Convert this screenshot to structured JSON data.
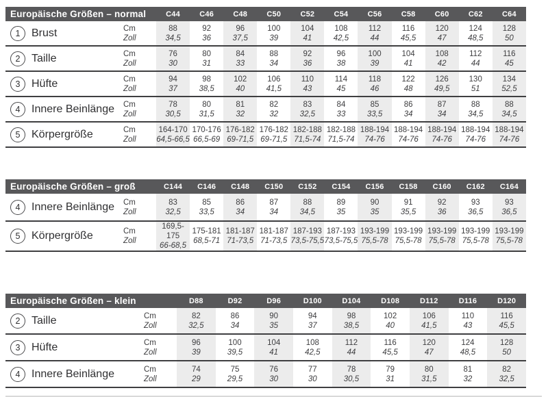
{
  "colors": {
    "header_bar": "#58585a",
    "header_text": "#ffffff",
    "stripe": "#ececec",
    "text": "#3e3e40",
    "rule": "#3e3e40",
    "bottom_divider": "#d9d9d9"
  },
  "units": {
    "cm_label": "Cm",
    "zoll_label": "Zoll"
  },
  "tables": [
    {
      "title": "Europäische Größen – normal",
      "columns": [
        "C44",
        "C46",
        "C48",
        "C50",
        "C52",
        "C54",
        "C56",
        "C58",
        "C60",
        "C62",
        "C64"
      ],
      "rows": [
        {
          "num": "1",
          "label": "Brust",
          "cm": [
            "88",
            "92",
            "96",
            "100",
            "104",
            "108",
            "112",
            "116",
            "120",
            "124",
            "128"
          ],
          "zoll": [
            "34,5",
            "36",
            "37,5",
            "39",
            "41",
            "42,5",
            "44",
            "45,5",
            "47",
            "48,5",
            "50"
          ]
        },
        {
          "num": "2",
          "label": "Taille",
          "cm": [
            "76",
            "80",
            "84",
            "88",
            "92",
            "96",
            "100",
            "104",
            "108",
            "112",
            "116"
          ],
          "zoll": [
            "30",
            "31",
            "33",
            "34",
            "36",
            "38",
            "39",
            "41",
            "42",
            "44",
            "45"
          ]
        },
        {
          "num": "3",
          "label": "Hüfte",
          "cm": [
            "94",
            "98",
            "102",
            "106",
            "110",
            "114",
            "118",
            "122",
            "126",
            "130",
            "134"
          ],
          "zoll": [
            "37",
            "38,5",
            "40",
            "41,5",
            "43",
            "45",
            "46",
            "48",
            "49,5",
            "51",
            "52,5"
          ]
        },
        {
          "num": "4",
          "label": "Innere Beinlänge",
          "cm": [
            "78",
            "80",
            "81",
            "82",
            "83",
            "84",
            "85",
            "86",
            "87",
            "88",
            "88"
          ],
          "zoll": [
            "30,5",
            "31,5",
            "32",
            "32",
            "32,5",
            "33",
            "33,5",
            "34",
            "34",
            "34,5",
            "34,5"
          ]
        },
        {
          "num": "5",
          "label": "Körpergröße",
          "cm": [
            "164-170",
            "170-176",
            "176-182",
            "176-182",
            "182-188",
            "182-188",
            "188-194",
            "188-194",
            "188-194",
            "188-194",
            "188-194"
          ],
          "zoll": [
            "64,5-66,5",
            "66,5-69",
            "69-71,5",
            "69-71,5",
            "71,5-74",
            "71,5-74",
            "74-76",
            "74-76",
            "74-76",
            "74-76",
            "74-76"
          ]
        }
      ]
    },
    {
      "title": "Europäische Größen – groß",
      "columns": [
        "C144",
        "C146",
        "C148",
        "C150",
        "C152",
        "C154",
        "C156",
        "C158",
        "C160",
        "C162",
        "C164"
      ],
      "rows": [
        {
          "num": "4",
          "label": "Innere Beinlänge",
          "cm": [
            "83",
            "85",
            "86",
            "87",
            "88",
            "89",
            "90",
            "91",
            "92",
            "93",
            "93"
          ],
          "zoll": [
            "32,5",
            "33,5",
            "34",
            "34",
            "34,5",
            "35",
            "35",
            "35,5",
            "36",
            "36,5",
            "36,5"
          ]
        },
        {
          "num": "5",
          "label": "Körpergröße",
          "cm": [
            "169,5-175",
            "175-181",
            "181-187",
            "181-187",
            "187-193",
            "187-193",
            "193-199",
            "193-199",
            "193-199",
            "193-199",
            "193-199"
          ],
          "zoll": [
            "66-68,5",
            "68,5-71",
            "71-73,5",
            "71-73,5",
            "73,5-75,5",
            "73,5-75,5",
            "75,5-78",
            "75,5-78",
            "75,5-78",
            "75,5-78",
            "75,5-78"
          ]
        }
      ]
    },
    {
      "title": "Europäische Größen – klein",
      "columns": [
        "D88",
        "D92",
        "D96",
        "D100",
        "D104",
        "D108",
        "D112",
        "D116",
        "D120"
      ],
      "rows": [
        {
          "num": "2",
          "label": "Taille",
          "cm": [
            "82",
            "86",
            "90",
            "94",
            "98",
            "102",
            "106",
            "110",
            "116"
          ],
          "zoll": [
            "32,5",
            "34",
            "35",
            "37",
            "38,5",
            "40",
            "41,5",
            "43",
            "45,5"
          ]
        },
        {
          "num": "3",
          "label": "Hüfte",
          "cm": [
            "96",
            "100",
            "104",
            "108",
            "112",
            "116",
            "120",
            "124",
            "128"
          ],
          "zoll": [
            "39",
            "39,5",
            "41",
            "42,5",
            "44",
            "45,5",
            "47",
            "48,5",
            "50"
          ]
        },
        {
          "num": "4",
          "label": "Innere Beinlänge",
          "cm": [
            "74",
            "75",
            "76",
            "77",
            "78",
            "79",
            "80",
            "81",
            "82"
          ],
          "zoll": [
            "29",
            "29,5",
            "30",
            "30",
            "30,5",
            "31",
            "31,5",
            "32",
            "32,5"
          ]
        }
      ]
    }
  ]
}
